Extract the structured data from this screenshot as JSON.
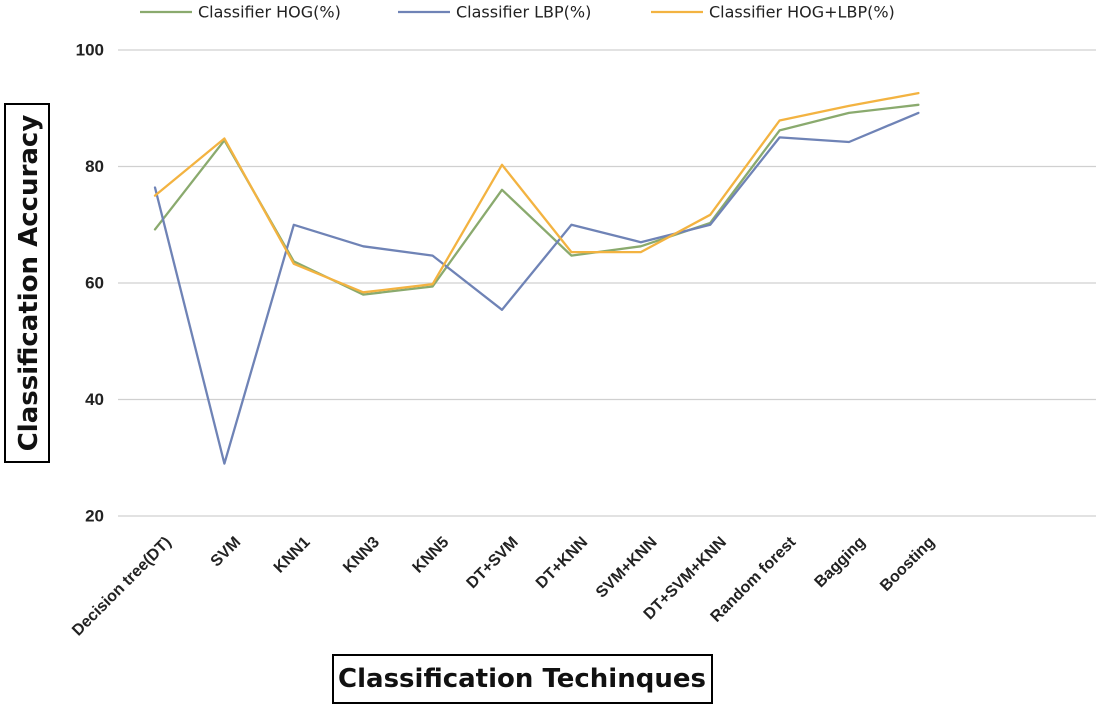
{
  "chart_data": {
    "type": "line",
    "xlabel": "Classification Techinques",
    "ylabel": "Classification Accuracy",
    "ylim": [
      20,
      100
    ],
    "yticks": [
      20,
      40,
      60,
      80,
      100
    ],
    "grid": true,
    "legend_position": "top",
    "categories": [
      "Decision tree(DT)",
      "SVM",
      "KNN1",
      "KNN3",
      "KNN5",
      "DT+SVM",
      "DT+KNN",
      "SVM+KNN",
      "DT+SVM+KNN",
      "Random forest",
      "Bagging",
      "Boosting"
    ],
    "series": [
      {
        "name": "Classifier HOG(%)",
        "color": "#8aaa6e",
        "values": [
          69.2,
          84.5,
          63.7,
          58.0,
          59.4,
          76.0,
          64.7,
          66.3,
          70.3,
          86.2,
          89.2,
          90.6
        ]
      },
      {
        "name": "Classifier LBP(%)",
        "color": "#6f83b6",
        "values": [
          76.4,
          29.0,
          70.0,
          66.3,
          64.7,
          55.4,
          70.0,
          67.0,
          70.0,
          85.0,
          84.2,
          89.2
        ]
      },
      {
        "name": "Classifier HOG+LBP(%)",
        "color": "#f3b341",
        "values": [
          75.0,
          84.8,
          63.3,
          58.4,
          59.8,
          80.3,
          65.3,
          65.3,
          71.7,
          87.9,
          90.4,
          92.6
        ]
      }
    ]
  }
}
